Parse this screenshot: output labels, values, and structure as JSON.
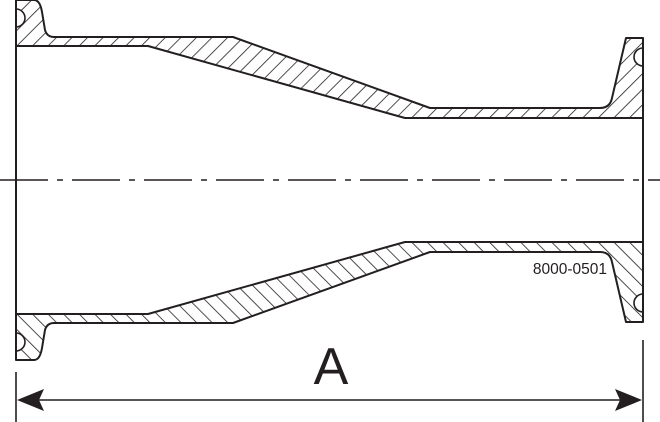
{
  "drawing": {
    "part_number": "8000-0501",
    "dimension_label": "A",
    "line_color": "#231f20"
  }
}
